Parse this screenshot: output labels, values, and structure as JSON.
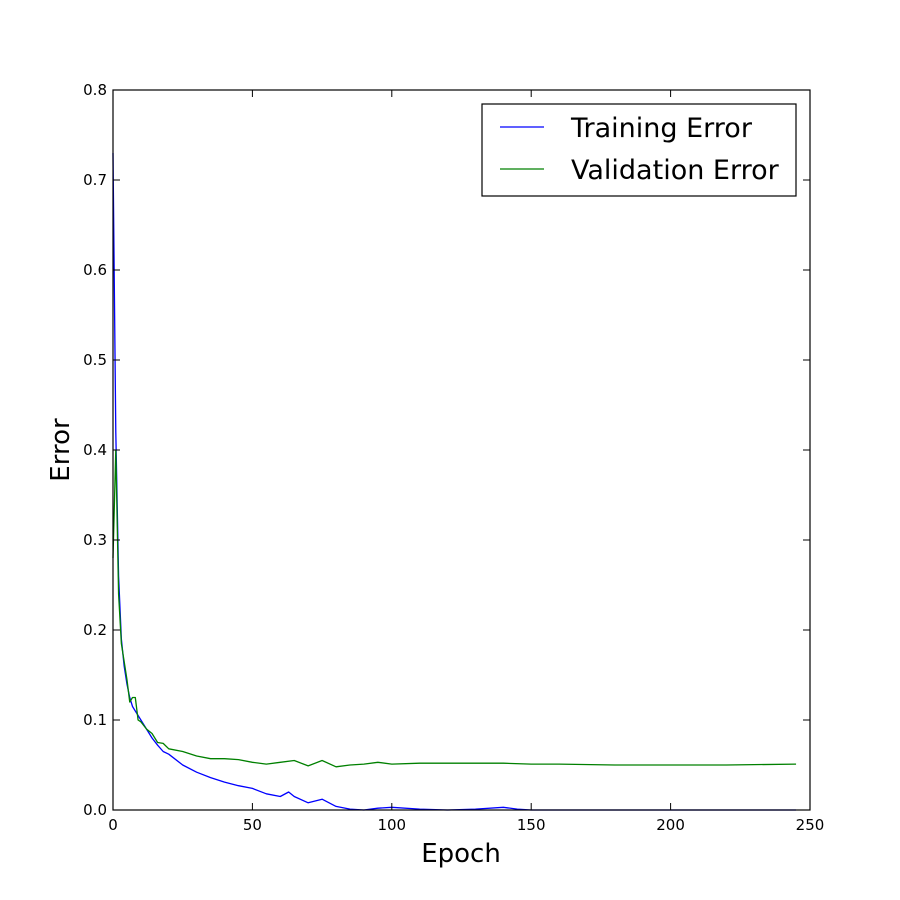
{
  "chart_data": {
    "type": "line",
    "title": "",
    "xlabel": "Epoch",
    "ylabel": "Error",
    "xlim": [
      0,
      250
    ],
    "ylim": [
      0,
      0.8
    ],
    "xticks": [
      "0",
      "50",
      "100",
      "150",
      "200",
      "250"
    ],
    "yticks": [
      "0.0",
      "0.1",
      "0.2",
      "0.3",
      "0.4",
      "0.5",
      "0.6",
      "0.7",
      "0.8"
    ],
    "grid": false,
    "legend_position": "top-right",
    "series": [
      {
        "name": "Training Error",
        "color": "#0000ff",
        "x": [
          0,
          1,
          2,
          3,
          4,
          5,
          6,
          7,
          8,
          9,
          10,
          12,
          14,
          16,
          18,
          20,
          25,
          30,
          35,
          40,
          45,
          50,
          55,
          60,
          63,
          65,
          70,
          75,
          80,
          85,
          90,
          95,
          100,
          110,
          120,
          130,
          140,
          145,
          150,
          160,
          180,
          200,
          220,
          245
        ],
        "y": [
          0.73,
          0.42,
          0.26,
          0.19,
          0.16,
          0.14,
          0.125,
          0.115,
          0.11,
          0.105,
          0.1,
          0.09,
          0.08,
          0.072,
          0.065,
          0.062,
          0.05,
          0.042,
          0.036,
          0.031,
          0.027,
          0.024,
          0.018,
          0.015,
          0.02,
          0.015,
          0.008,
          0.012,
          0.004,
          0.001,
          0.0,
          0.002,
          0.003,
          0.001,
          0.0,
          0.001,
          0.003,
          0.001,
          0.0,
          0.0,
          0.0,
          0.0,
          0.0,
          0.0
        ]
      },
      {
        "name": "Validation Error",
        "color": "#008000",
        "x": [
          0,
          1,
          2,
          3,
          4,
          5,
          6,
          7,
          8,
          9,
          10,
          12,
          14,
          16,
          18,
          20,
          25,
          30,
          35,
          40,
          45,
          50,
          55,
          60,
          65,
          70,
          75,
          80,
          85,
          90,
          95,
          100,
          110,
          120,
          130,
          140,
          150,
          160,
          180,
          200,
          220,
          245
        ],
        "y": [
          0.28,
          0.4,
          0.24,
          0.185,
          0.165,
          0.145,
          0.12,
          0.125,
          0.125,
          0.1,
          0.098,
          0.09,
          0.085,
          0.075,
          0.074,
          0.068,
          0.065,
          0.06,
          0.057,
          0.057,
          0.056,
          0.053,
          0.051,
          0.053,
          0.055,
          0.049,
          0.055,
          0.048,
          0.05,
          0.051,
          0.053,
          0.051,
          0.052,
          0.052,
          0.052,
          0.052,
          0.051,
          0.051,
          0.05,
          0.05,
          0.05,
          0.051
        ]
      }
    ]
  }
}
